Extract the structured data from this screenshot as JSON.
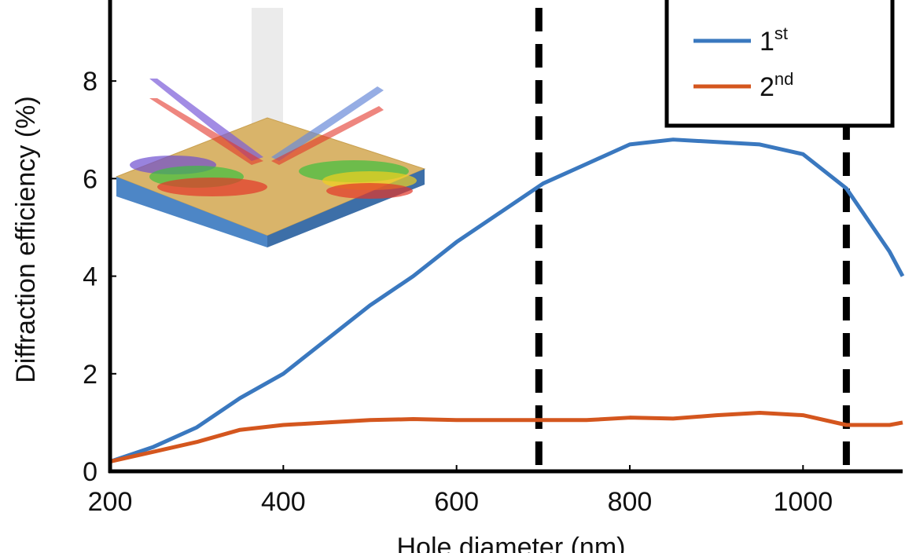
{
  "chart_data": {
    "type": "line",
    "x_label": "Hole diameter (nm)",
    "y_label": "Diffraction efficiency (%)",
    "x": [
      200,
      250,
      300,
      350,
      400,
      450,
      500,
      550,
      600,
      650,
      700,
      750,
      800,
      850,
      900,
      950,
      1000,
      1050,
      1100,
      1115
    ],
    "series": [
      {
        "name": "1st",
        "color": "#3a78bf",
        "values": [
          0.2,
          0.5,
          0.9,
          1.5,
          2.0,
          2.7,
          3.4,
          4.0,
          4.7,
          5.3,
          5.9,
          6.3,
          6.7,
          6.8,
          6.75,
          6.7,
          6.5,
          5.8,
          4.5,
          4.0
        ]
      },
      {
        "name": "2nd",
        "color": "#d4561e",
        "values": [
          0.2,
          0.4,
          0.6,
          0.85,
          0.95,
          1.0,
          1.05,
          1.07,
          1.05,
          1.05,
          1.05,
          1.05,
          1.1,
          1.08,
          1.15,
          1.2,
          1.15,
          0.95,
          0.95,
          1.0
        ]
      }
    ],
    "reference_lines_x": [
      695,
      1050
    ],
    "xlim": [
      200,
      1115
    ],
    "xticks": [
      200,
      400,
      600,
      800,
      1000
    ],
    "ylim": [
      0,
      9.5
    ],
    "yticks": [
      0,
      2,
      4,
      6,
      8
    ],
    "grid": false,
    "legend": "upper right"
  }
}
